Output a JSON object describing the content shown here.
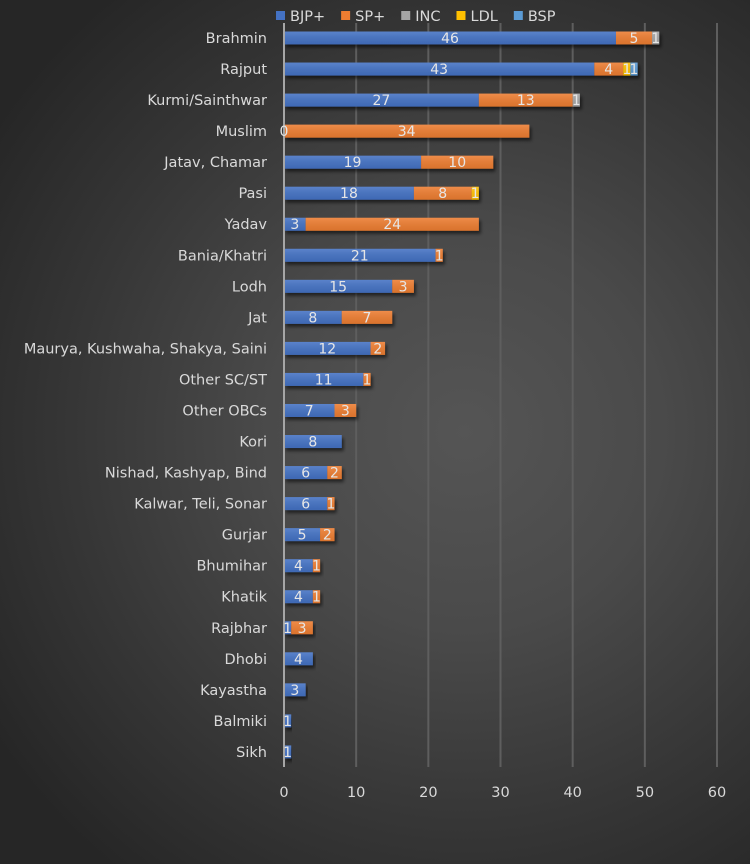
{
  "chart_data": {
    "type": "bar",
    "orientation": "horizontal",
    "stacked": true,
    "title": "",
    "xlabel": "",
    "ylabel": "",
    "xlim": [
      0,
      60
    ],
    "x_ticks": [
      0,
      10,
      20,
      30,
      40,
      50,
      60
    ],
    "grid": true,
    "legend_position": "top",
    "categories": [
      "Brahmin",
      "Rajput",
      "Kurmi/Sainthwar",
      "Muslim",
      "Jatav, Chamar",
      "Pasi",
      "Yadav",
      "Bania/Khatri",
      "Lodh",
      "Jat",
      "Maurya, Kushwaha, Shakya, Saini",
      "Other SC/ST",
      "Other OBCs",
      "Kori",
      "Nishad, Kashyap, Bind",
      "Kalwar, Teli, Sonar",
      "Gurjar",
      "Bhumihar",
      "Khatik",
      "Rajbhar",
      "Dhobi",
      "Kayastha",
      "Balmiki",
      "Sikh"
    ],
    "series": [
      {
        "name": "BJP+",
        "color": "#4472c4",
        "values": [
          46,
          43,
          27,
          0,
          19,
          18,
          3,
          21,
          15,
          8,
          12,
          11,
          7,
          8,
          6,
          6,
          5,
          4,
          4,
          1,
          4,
          3,
          1,
          1
        ]
      },
      {
        "name": "SP+",
        "color": "#ed7d31",
        "values": [
          5,
          4,
          13,
          34,
          10,
          8,
          24,
          1,
          3,
          7,
          2,
          1,
          3,
          null,
          2,
          1,
          2,
          1,
          1,
          3,
          null,
          null,
          null,
          null
        ]
      },
      {
        "name": "INC",
        "color": "#a5a5a5",
        "values": [
          1,
          null,
          1,
          null,
          null,
          null,
          null,
          null,
          null,
          null,
          null,
          null,
          null,
          null,
          null,
          null,
          null,
          null,
          null,
          null,
          null,
          null,
          null,
          null
        ]
      },
      {
        "name": "LDL",
        "color": "#ffc000",
        "values": [
          null,
          1,
          null,
          null,
          null,
          1,
          null,
          null,
          null,
          null,
          null,
          null,
          null,
          null,
          null,
          null,
          null,
          null,
          null,
          null,
          null,
          null,
          null,
          null
        ]
      },
      {
        "name": "BSP",
        "color": "#5b9bd5",
        "values": [
          null,
          1,
          null,
          null,
          null,
          null,
          null,
          null,
          null,
          null,
          null,
          null,
          null,
          null,
          null,
          null,
          null,
          null,
          null,
          null,
          null,
          null,
          null,
          null
        ]
      }
    ]
  }
}
